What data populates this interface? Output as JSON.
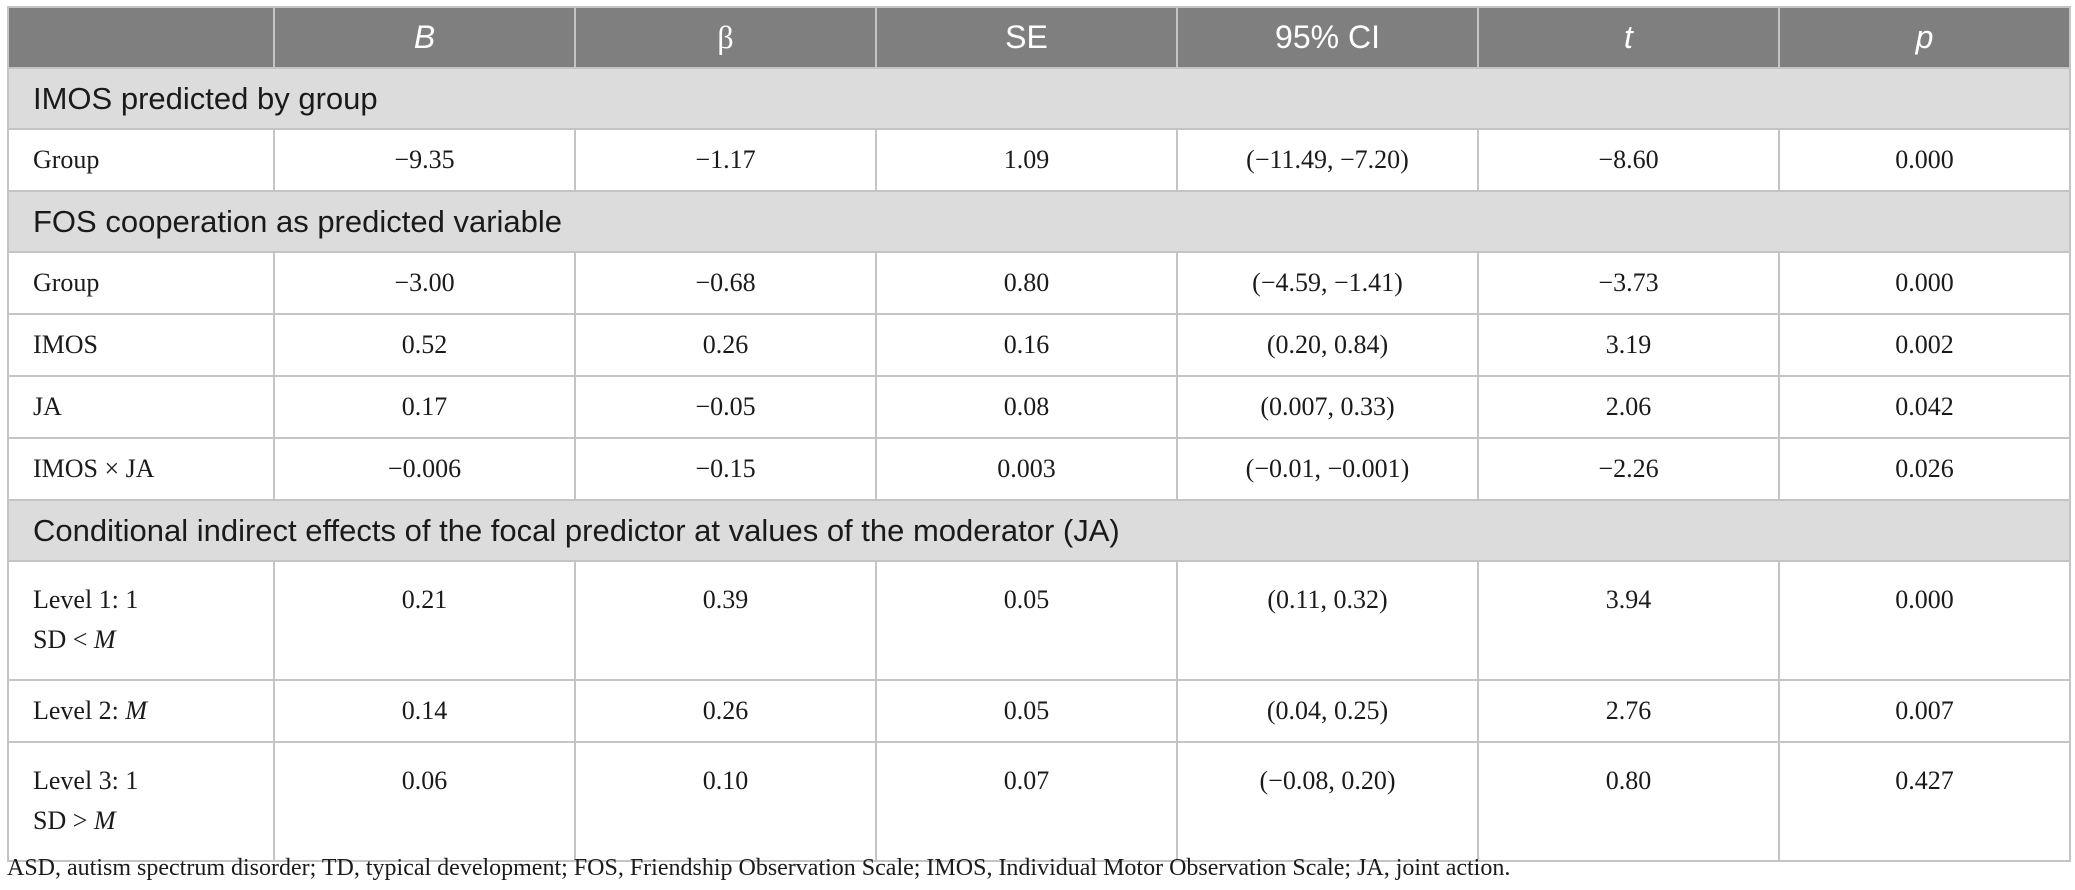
{
  "header": {
    "col0": "",
    "col1": "B",
    "col2": "β",
    "col3": "SE",
    "col4": "95% CI",
    "col5": "t",
    "col6": "p"
  },
  "sections": [
    {
      "title": "IMOS predicted by group",
      "rows": [
        {
          "label": "Group",
          "values": [
            "−9.35",
            "−1.17",
            "1.09",
            "(−11.49, −7.20)",
            "−8.60",
            "0.000"
          ]
        }
      ]
    },
    {
      "title": "FOS cooperation as predicted variable",
      "rows": [
        {
          "label": "Group",
          "values": [
            "−3.00",
            "−0.68",
            "0.80",
            "(−4.59, −1.41)",
            "−3.73",
            "0.000"
          ]
        },
        {
          "label": "IMOS",
          "values": [
            "0.52",
            "0.26",
            "0.16",
            "(0.20, 0.84)",
            "3.19",
            "0.002"
          ]
        },
        {
          "label": "JA",
          "values": [
            "0.17",
            "−0.05",
            "0.08",
            "(0.007, 0.33)",
            "2.06",
            "0.042"
          ]
        },
        {
          "label": "IMOS × JA",
          "values": [
            "−0.006",
            "−0.15",
            "0.003",
            "(−0.01, −0.001)",
            "−2.26",
            "0.026"
          ]
        }
      ]
    },
    {
      "title": "Conditional indirect effects of the focal predictor at values of the moderator (JA)",
      "rows": [
        {
          "label_line1": "Level 1: 1",
          "label_line2_pre": "SD < ",
          "label_line2_m": "M",
          "values": [
            "0.21",
            "0.39",
            "0.05",
            "(0.11, 0.32)",
            "3.94",
            "0.000"
          ]
        },
        {
          "label_pre": "Level 2: ",
          "label_m": "M",
          "values": [
            "0.14",
            "0.26",
            "0.05",
            "(0.04, 0.25)",
            "2.76",
            "0.007"
          ]
        },
        {
          "label_line1": "Level 3: 1",
          "label_line2_pre": "SD > ",
          "label_line2_m": "M",
          "values": [
            "0.06",
            "0.10",
            "0.07",
            "(−0.08, 0.20)",
            "0.80",
            "0.427"
          ]
        }
      ]
    }
  ],
  "footnote": "ASD, autism spectrum disorder; TD, typical development; FOS, Friendship Observation Scale; IMOS, Individual Motor Observation Scale; JA, joint action."
}
